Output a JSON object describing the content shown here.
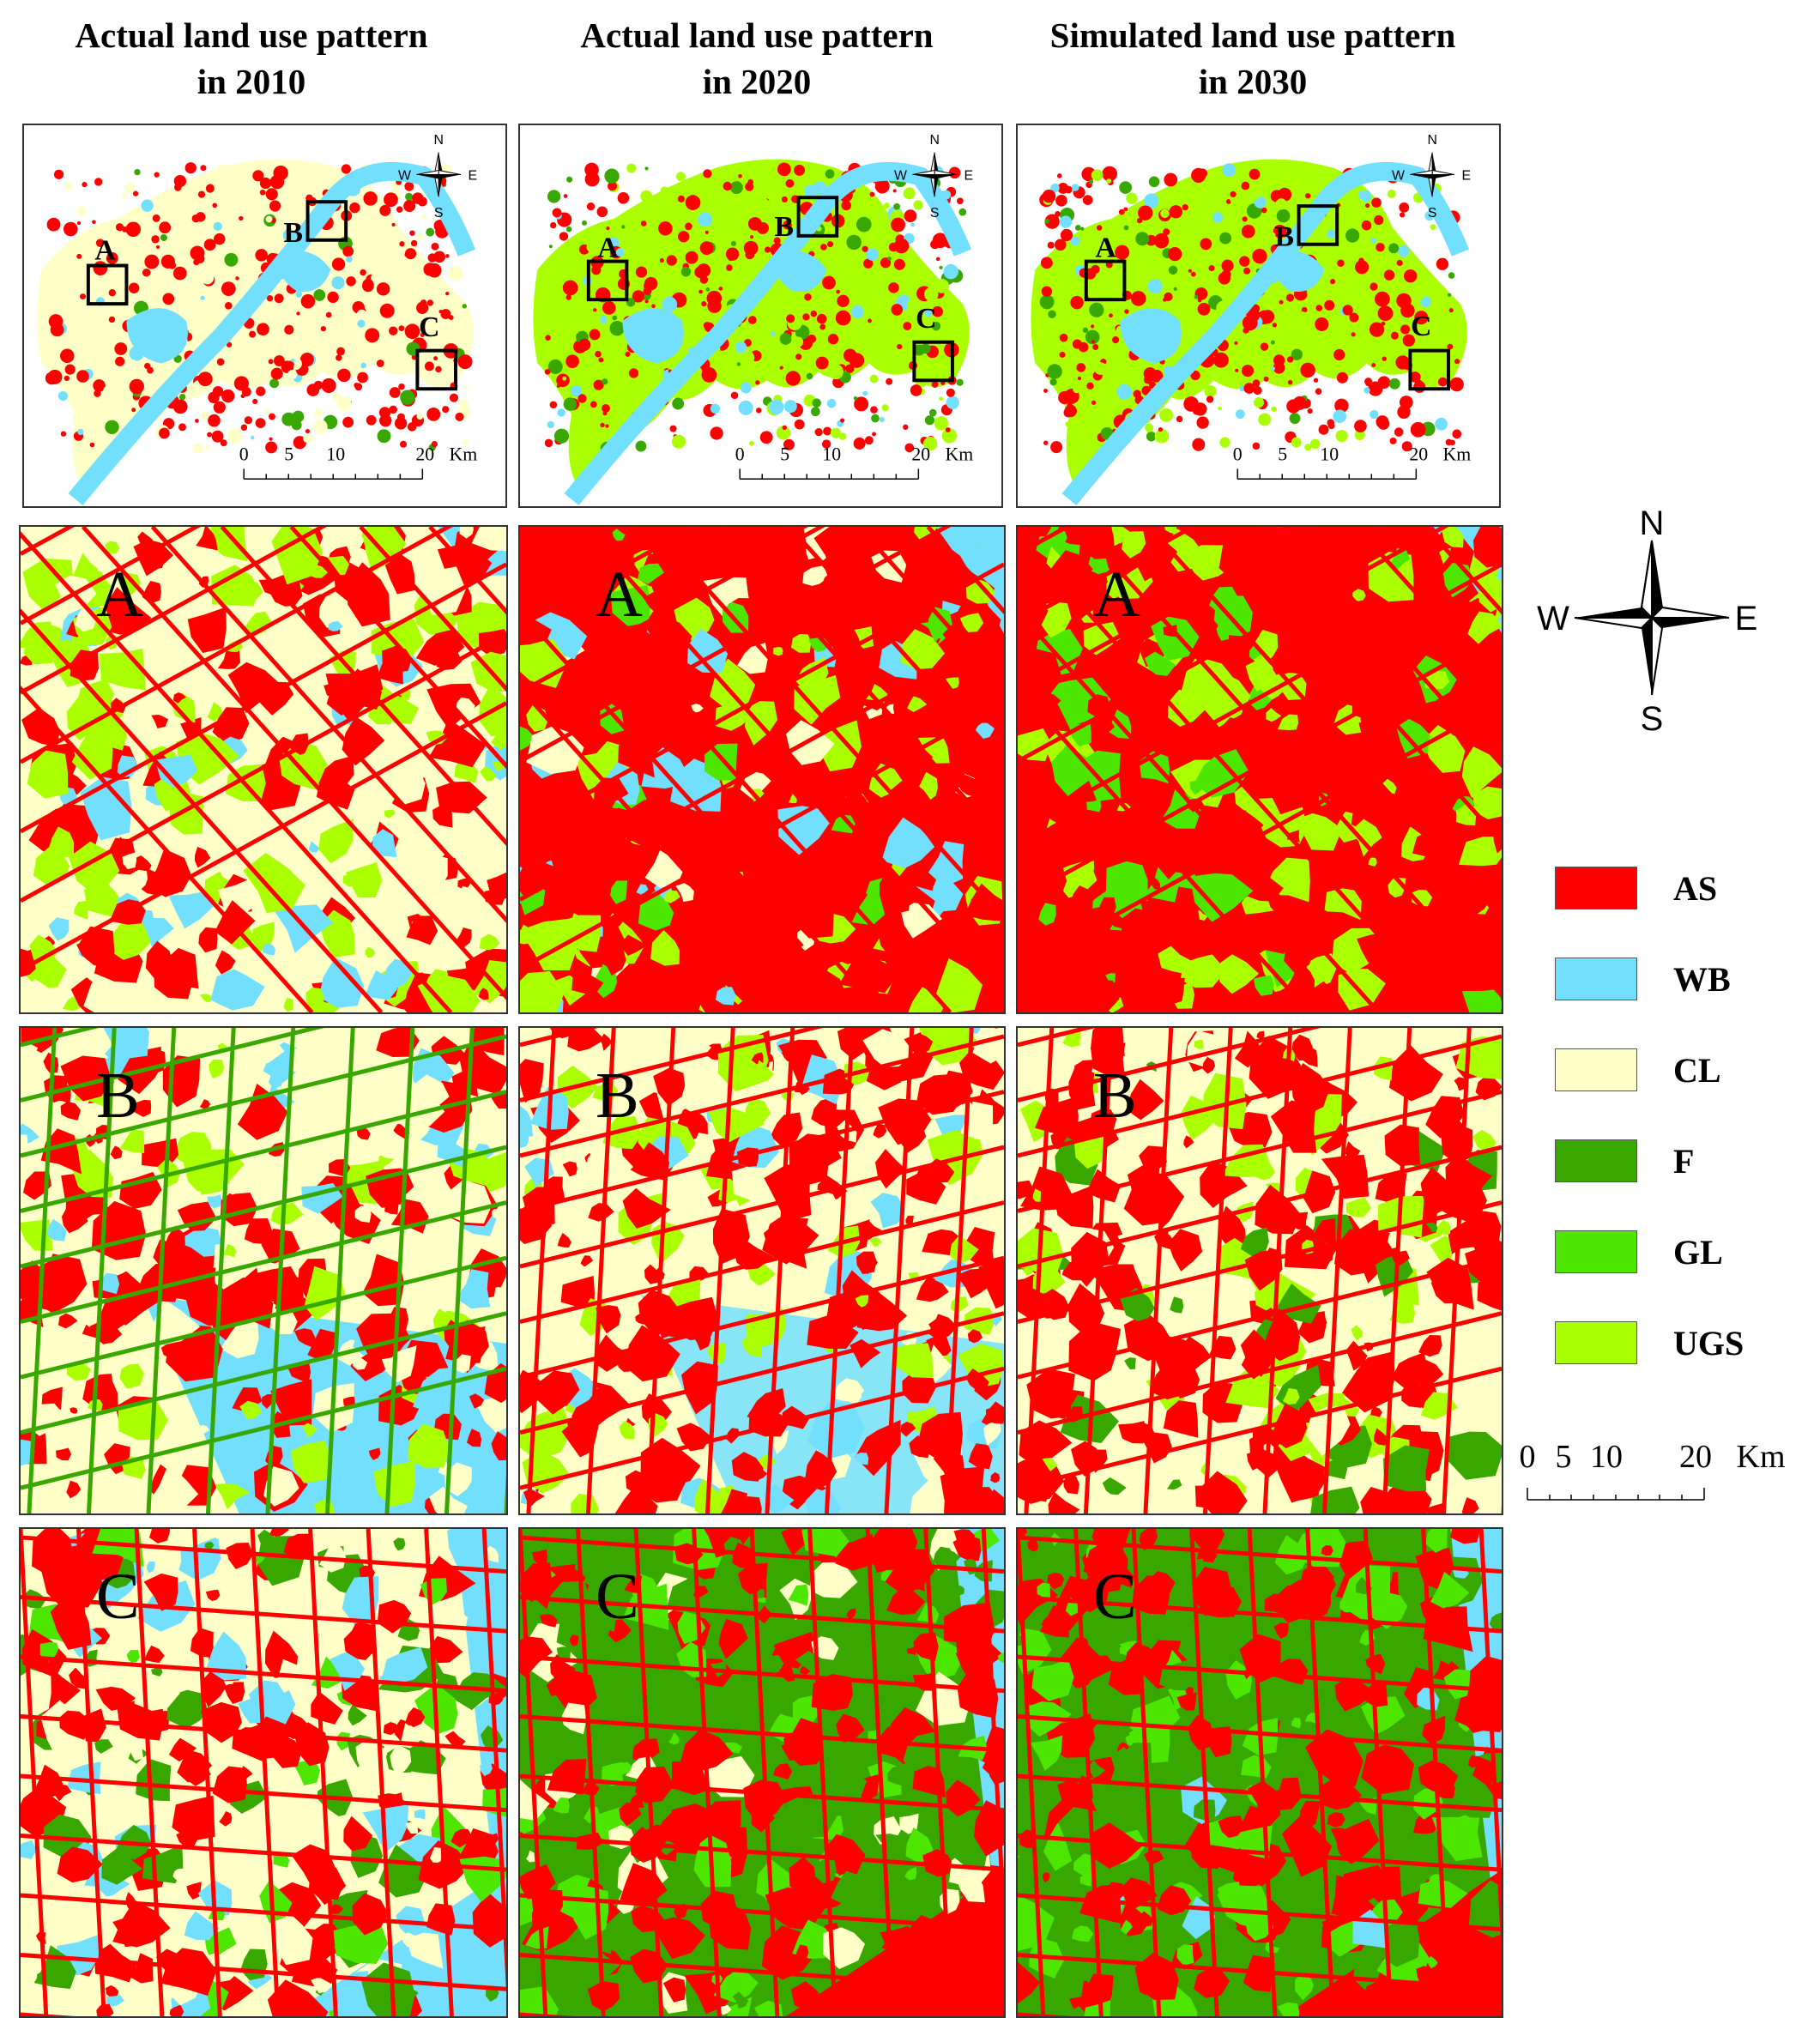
{
  "columns": [
    {
      "title_line1": "Actual land use pattern",
      "title_line2": "in 2010"
    },
    {
      "title_line1": "Actual land use pattern",
      "title_line2": "in 2020"
    },
    {
      "title_line1": "Simulated land use pattern",
      "title_line2": "in 2030"
    }
  ],
  "overview": {
    "compass": {
      "n": "N",
      "s": "S",
      "e": "E",
      "w": "W"
    },
    "box_labels": [
      "A",
      "B",
      "C"
    ],
    "scale_ticks": [
      "0",
      "5",
      "10",
      "20"
    ],
    "scale_unit": "Km"
  },
  "zoom_rows": [
    "A",
    "B",
    "C"
  ],
  "legend": {
    "items": [
      {
        "code": "AS",
        "color": "#ff0000"
      },
      {
        "code": "WB",
        "color": "#73dfff"
      },
      {
        "code": "CL",
        "color": "#ffffc8"
      },
      {
        "code": "F",
        "color": "#38a800"
      },
      {
        "code": "GL",
        "color": "#4ce600"
      },
      {
        "code": "UGS",
        "color": "#aaff00"
      }
    ],
    "compass": {
      "n": "N",
      "s": "S",
      "e": "E",
      "w": "W"
    },
    "scale_ticks": [
      "0",
      "5",
      "10",
      "20"
    ],
    "scale_unit": "Km"
  },
  "colors": {
    "as": "#ff0000",
    "wb": "#73dfff",
    "cl": "#ffffc8",
    "f": "#38a800",
    "gl": "#4ce600",
    "ugs": "#aaff00"
  }
}
